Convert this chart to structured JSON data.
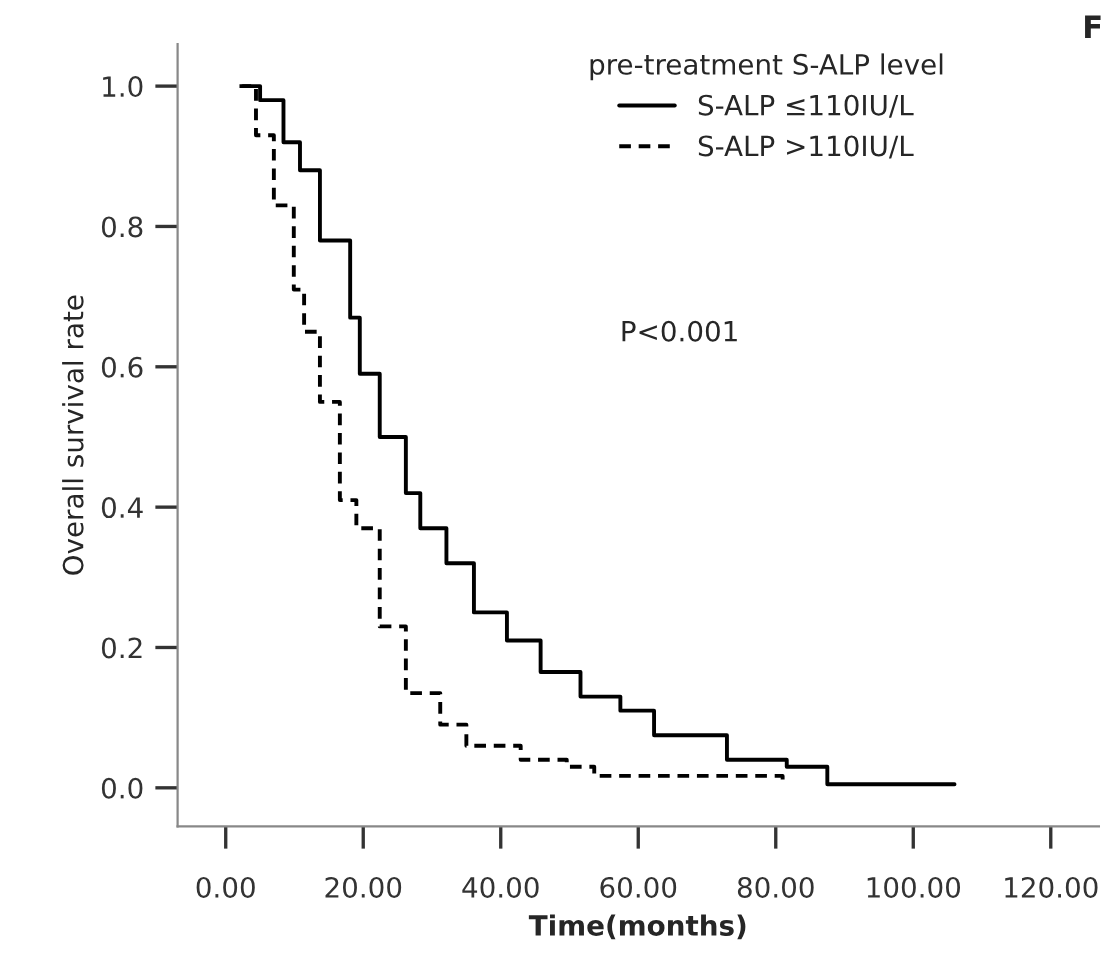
{
  "chart_data": {
    "type": "step",
    "xlabel": "Time(months)",
    "ylabel": "Overall survival rate",
    "legend_title": "pre-treatment S-ALP level",
    "legend": "top right",
    "grid": false,
    "marker": "none",
    "xlim": [
      -7,
      127
    ],
    "ylim": [
      -0.055,
      1.06
    ],
    "xticks": [
      {
        "value": 0,
        "label": "0.00"
      },
      {
        "value": 20,
        "label": "20.00"
      },
      {
        "value": 40,
        "label": "40.00"
      },
      {
        "value": 60,
        "label": "60.00"
      },
      {
        "value": 80,
        "label": "80.00"
      },
      {
        "value": 100,
        "label": "100.00"
      },
      {
        "value": 120,
        "label": "120.00"
      }
    ],
    "yticks": [
      {
        "value": 0,
        "label": "0.0"
      },
      {
        "value": 0.2,
        "label": "0.2"
      },
      {
        "value": 0.4,
        "label": "0.4"
      },
      {
        "value": 0.6,
        "label": "0.6"
      },
      {
        "value": 0.8,
        "label": "0.8"
      },
      {
        "value": 1.0,
        "label": "1.0"
      }
    ],
    "series": [
      {
        "name": "S-ALP ≤110IU/L",
        "color": "#000000",
        "line_style": "solid",
        "x": [
          2.5,
          5,
          8.4,
          10.8,
          13.7,
          18.1,
          19.5,
          22.4,
          26.2,
          28.3,
          32.1,
          36.1,
          40.9,
          45.8,
          51.6,
          57.4,
          62.3,
          72.9,
          81.6,
          87.5,
          106
        ],
        "values": [
          1.0,
          0.98,
          0.92,
          0.88,
          0.78,
          0.67,
          0.59,
          0.5,
          0.42,
          0.37,
          0.32,
          0.25,
          0.21,
          0.165,
          0.13,
          0.11,
          0.075,
          0.04,
          0.03,
          0.005,
          0.005
        ]
      },
      {
        "name": "S-ALP >110IU/L",
        "color": "#000000",
        "line_style": "dashed",
        "x": [
          2,
          4.4,
          7,
          9.9,
          11.4,
          13.7,
          16.6,
          19,
          22.4,
          26.2,
          31.2,
          35,
          42.9,
          49.6,
          53.6,
          81
        ],
        "values": [
          1.0,
          0.93,
          0.83,
          0.71,
          0.65,
          0.55,
          0.41,
          0.37,
          0.23,
          0.135,
          0.09,
          0.06,
          0.04,
          0.03,
          0.017,
          0.005
        ]
      }
    ],
    "annotations": [
      "P<0.001",
      "F"
    ]
  }
}
